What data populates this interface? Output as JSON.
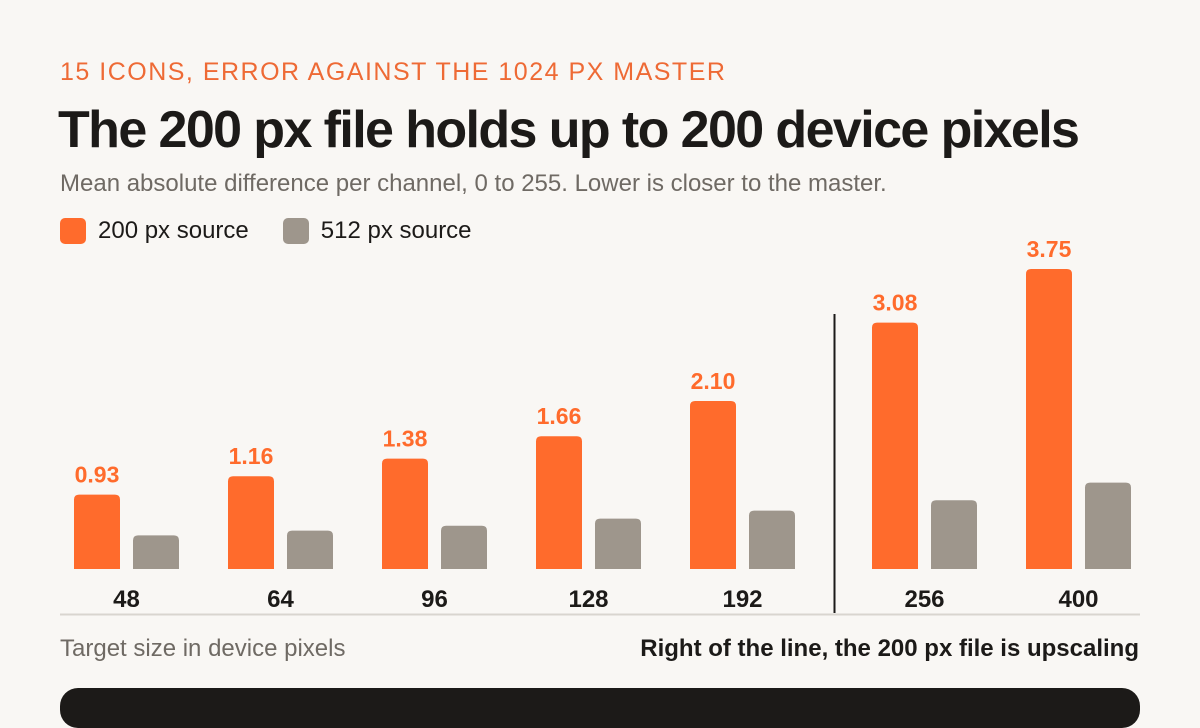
{
  "colors": {
    "accent": "#ff6b2c",
    "secondary": "#9e968c",
    "text": "#1c1a18",
    "muted": "#6f6a64",
    "background": "#f9f7f4"
  },
  "eyebrow": "15 ICONS, ERROR AGAINST THE 1024 PX MASTER",
  "footer": {
    "xlabel": "Target size in device pixels",
    "note": "Right of the line, the 200 px file is upscaling"
  },
  "chart_data": {
    "type": "bar",
    "title": "The 200 px file holds up to 200 device pixels",
    "subtitle": "Mean absolute difference per channel, 0 to 255. Lower is closer to the master.",
    "xlabel": "Target size in device pixels",
    "ylabel": "",
    "categories": [
      "48",
      "64",
      "96",
      "128",
      "192",
      "256",
      "400"
    ],
    "series": [
      {
        "name": "200 px source",
        "color": "#ff6b2c",
        "values": [
          0.93,
          1.16,
          1.38,
          1.66,
          2.1,
          3.08,
          3.75
        ],
        "labels": [
          "0.93",
          "1.16",
          "1.38",
          "1.66",
          "2.10",
          "3.08",
          "3.75"
        ]
      },
      {
        "name": "512 px source",
        "color": "#9e968c",
        "values": [
          0.42,
          0.48,
          0.54,
          0.63,
          0.73,
          0.86,
          1.08
        ]
      }
    ],
    "ylim": [
      0,
      3.75
    ],
    "divider_after_category": "192",
    "grid": false,
    "legend_position": "top-left"
  }
}
